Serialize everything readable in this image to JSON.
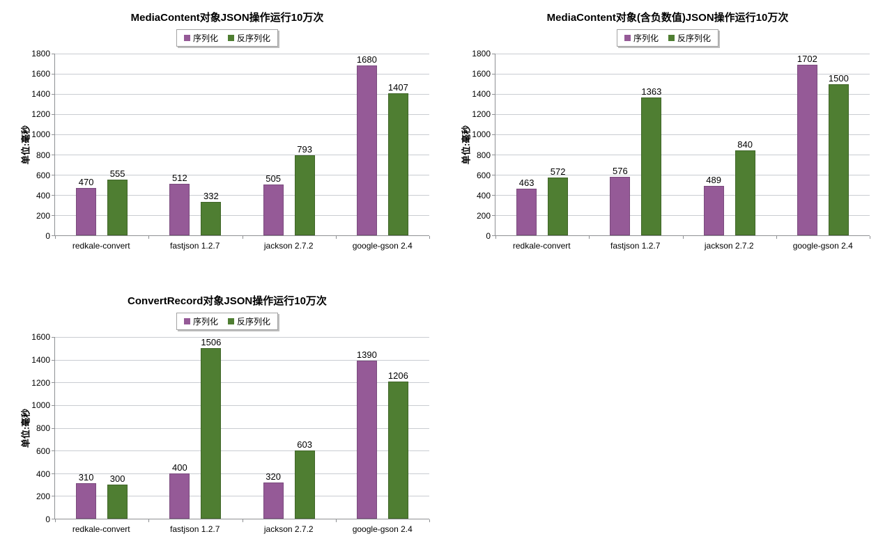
{
  "page": {
    "background": "#ffffff"
  },
  "colors": {
    "serialize_fill": "#955a97",
    "serialize_border": "#7a4a7d",
    "deserialize_fill": "#4f7e32",
    "deserialize_border": "#3f6527",
    "gridline": "#c9ccd1",
    "axis": "#8e9093",
    "text": "#000000",
    "legend_border": "#a3a3a3"
  },
  "chart_data": [
    {
      "type": "bar",
      "title": "MediaContent对象JSON操作运行10万次",
      "ylabel": "单位:毫秒",
      "xlabel": "",
      "ylim": [
        0,
        1800
      ],
      "ystep": 200,
      "grid": true,
      "legend_position": "top",
      "categories": [
        "redkale-convert",
        "fastjson 1.2.7",
        "jackson 2.7.2",
        "google-gson 2.4"
      ],
      "series": [
        {
          "name": "序列化",
          "values": [
            470,
            512,
            505,
            1680
          ]
        },
        {
          "name": "反序列化",
          "values": [
            555,
            332,
            793,
            1407
          ]
        }
      ]
    },
    {
      "type": "bar",
      "title": "MediaContent对象(含负数值)JSON操作运行10万次",
      "ylabel": "单位:毫秒",
      "xlabel": "",
      "ylim": [
        0,
        1800
      ],
      "ystep": 200,
      "grid": true,
      "legend_position": "top",
      "categories": [
        "redkale-convert",
        "fastjson 1.2.7",
        "jackson 2.7.2",
        "google-gson 2.4"
      ],
      "series": [
        {
          "name": "序列化",
          "values": [
            463,
            576,
            489,
            1702
          ]
        },
        {
          "name": "反序列化",
          "values": [
            572,
            1363,
            840,
            1500
          ]
        }
      ]
    },
    {
      "type": "bar",
      "title": "ConvertRecord对象JSON操作运行10万次",
      "ylabel": "单位:毫秒",
      "xlabel": "",
      "ylim": [
        0,
        1600
      ],
      "ystep": 200,
      "grid": true,
      "legend_position": "top",
      "categories": [
        "redkale-convert",
        "fastjson 1.2.7",
        "jackson 2.7.2",
        "google-gson 2.4"
      ],
      "series": [
        {
          "name": "序列化",
          "values": [
            310,
            400,
            320,
            1390
          ]
        },
        {
          "name": "反序列化",
          "values": [
            300,
            1506,
            603,
            1206
          ]
        }
      ]
    }
  ]
}
